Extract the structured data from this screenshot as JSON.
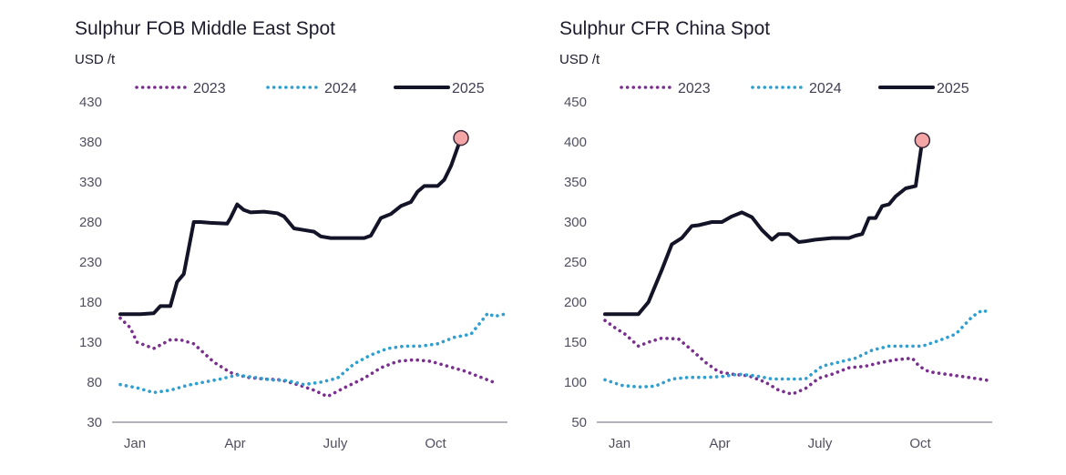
{
  "chart_data": [
    {
      "type": "line",
      "title": "Sulphur FOB Middle East Spot",
      "ylabel": "USD /t",
      "xlabel": "",
      "ylim": [
        30,
        430
      ],
      "yticks": [
        30,
        80,
        130,
        180,
        230,
        280,
        330,
        380,
        430
      ],
      "xlim": [
        1,
        12.6
      ],
      "xticks": [
        {
          "label": "Jan",
          "m": 1
        },
        {
          "label": "Apr",
          "m": 4
        },
        {
          "label": "July",
          "m": 7
        },
        {
          "label": "Oct",
          "m": 10
        }
      ],
      "grid": false,
      "legend": "top",
      "series": [
        {
          "name": "2023",
          "color": "#7a2f8f",
          "style": "dotted",
          "x": [
            1,
            1.3,
            1.5,
            2,
            2.5,
            2.8,
            3.2,
            3.8,
            4.3,
            4.8,
            5.3,
            5.8,
            6.3,
            6.8,
            7.2,
            7.7,
            8.3,
            8.8,
            9.3,
            9.8,
            10.3,
            10.8,
            11.3,
            11.8,
            12.3
          ],
          "y": [
            160,
            148,
            130,
            122,
            133,
            133,
            128,
            105,
            92,
            86,
            84,
            83,
            77,
            70,
            62,
            73,
            85,
            98,
            106,
            108,
            106,
            100,
            94,
            86,
            78
          ]
        },
        {
          "name": "2024",
          "color": "#2e9fd0",
          "style": "dotted",
          "x": [
            1,
            1.5,
            2,
            2.5,
            3,
            3.5,
            4,
            4.5,
            5,
            5.5,
            6,
            6.5,
            7,
            7.5,
            8,
            8.5,
            9,
            9.5,
            10,
            10.5,
            11,
            11.5,
            12,
            12.2,
            12.5
          ],
          "y": [
            77,
            73,
            67,
            70,
            76,
            80,
            84,
            89,
            86,
            83,
            82,
            77,
            80,
            85,
            103,
            114,
            122,
            125,
            125,
            128,
            136,
            140,
            166,
            162,
            165
          ]
        },
        {
          "name": "2025",
          "color": "#141428",
          "style": "solid",
          "x": [
            1,
            1.6,
            2,
            2.2,
            2.5,
            2.7,
            2.9,
            3.2,
            3.4,
            3.7,
            4.2,
            4.3,
            4.5,
            4.7,
            4.9,
            5.3,
            5.7,
            5.9,
            6.2,
            6.5,
            6.8,
            7,
            7.3,
            7.8,
            8.3,
            8.5,
            8.8,
            9.1,
            9.4,
            9.7,
            9.9,
            10.1,
            10.5,
            10.7,
            10.9,
            11.2
          ],
          "y": [
            165,
            165,
            166,
            175,
            175,
            205,
            215,
            280,
            280,
            279,
            278,
            285,
            302,
            295,
            292,
            293,
            291,
            287,
            272,
            270,
            268,
            262,
            260,
            260,
            260,
            263,
            285,
            290,
            300,
            305,
            318,
            325,
            325,
            333,
            350,
            385
          ]
        }
      ],
      "highlight": {
        "x": 11.2,
        "y": 385,
        "color": "#f4a6a6"
      }
    },
    {
      "type": "line",
      "title": "Sulphur CFR China Spot",
      "ylabel": "USD /t",
      "xlabel": "",
      "ylim": [
        50,
        450
      ],
      "yticks": [
        50,
        100,
        150,
        200,
        250,
        300,
        350,
        400,
        450
      ],
      "xlim": [
        1,
        12.6
      ],
      "xticks": [
        {
          "label": "Jan",
          "m": 1
        },
        {
          "label": "Apr",
          "m": 4
        },
        {
          "label": "July",
          "m": 7
        },
        {
          "label": "Oct",
          "m": 10
        }
      ],
      "grid": false,
      "legend": "top",
      "series": [
        {
          "name": "2023",
          "color": "#7a2f8f",
          "style": "dotted",
          "x": [
            1,
            1.3,
            1.6,
            2,
            2.3,
            2.7,
            3.2,
            3.6,
            4,
            4.4,
            4.8,
            5.3,
            5.8,
            6.2,
            6.6,
            7,
            7.4,
            7.8,
            8.3,
            8.8,
            9.2,
            9.7,
            10.2,
            10.4,
            10.7,
            11.2,
            11.7,
            12.2,
            12.5
          ],
          "y": [
            177,
            168,
            160,
            145,
            150,
            155,
            154,
            140,
            125,
            113,
            110,
            108,
            100,
            90,
            85,
            92,
            105,
            110,
            118,
            120,
            124,
            128,
            130,
            120,
            113,
            110,
            107,
            104,
            102
          ]
        },
        {
          "name": "2024",
          "color": "#2e9fd0",
          "style": "dotted",
          "x": [
            1,
            1.5,
            2,
            2.5,
            3,
            3.5,
            4,
            4.5,
            5,
            5.5,
            6,
            6.5,
            7,
            7.5,
            8,
            8.5,
            9,
            9.5,
            10,
            10.5,
            11,
            11.5,
            12,
            12.3,
            12.5
          ],
          "y": [
            103,
            96,
            94,
            95,
            104,
            106,
            106,
            107,
            110,
            108,
            104,
            104,
            104,
            120,
            125,
            130,
            140,
            145,
            145,
            145,
            152,
            160,
            182,
            190,
            187
          ]
        },
        {
          "name": "2025",
          "color": "#141428",
          "style": "solid",
          "x": [
            1,
            1.6,
            2,
            2.3,
            2.7,
            3,
            3.3,
            3.6,
            3.8,
            4.2,
            4.5,
            4.8,
            5.1,
            5.4,
            5.7,
            6,
            6.2,
            6.5,
            6.8,
            7,
            7.3,
            7.8,
            8.3,
            8.5,
            8.7,
            8.9,
            9.1,
            9.3,
            9.5,
            9.7,
            10,
            10.3,
            10.5
          ],
          "y": [
            185,
            185,
            185,
            200,
            240,
            272,
            280,
            295,
            296,
            300,
            300,
            307,
            312,
            306,
            290,
            278,
            285,
            285,
            275,
            276,
            278,
            280,
            280,
            283,
            285,
            305,
            305,
            320,
            322,
            332,
            342,
            345,
            402
          ]
        }
      ],
      "highlight": {
        "x": 10.5,
        "y": 402,
        "color": "#f4a6a6"
      }
    }
  ]
}
